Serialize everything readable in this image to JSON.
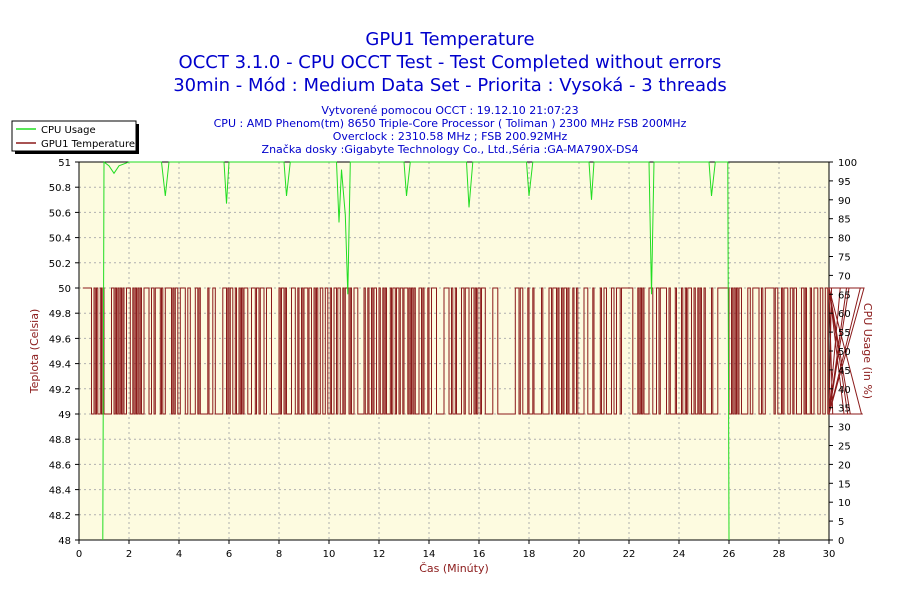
{
  "chart_data": {
    "type": "line",
    "title_lines": [
      "GPU1 Temperature",
      "OCCT 3.1.0 - CPU OCCT Test - Test Completed without errors",
      "30min - Mód : Medium Data Set - Priorita : Vysoká - 3 threads"
    ],
    "info_lines": [
      "Vytvorené pomocou OCCT : 19.12.10 21:07:23",
      "CPU : AMD Phenom(tm) 8650 Triple-Core Processor ( Toliman ) 2300 MHz FSB 200MHz",
      "Overclock : 2310.58 MHz ; FSB 200.92MHz",
      "Značka dosky :Gigabyte Technology Co., Ltd.,Séria :GA-MA790X-DS4"
    ],
    "xlabel": "Čas (Minúty)",
    "ylabel_left": "Teplota (Celsia)",
    "ylabel_right": "CPU Usage (in %)",
    "xlim": [
      0,
      30
    ],
    "ylim_left": [
      48,
      51
    ],
    "ylim_right": [
      0,
      100
    ],
    "x_ticks": [
      0,
      2,
      4,
      6,
      8,
      10,
      12,
      14,
      16,
      18,
      20,
      22,
      24,
      26,
      28,
      30
    ],
    "y_ticks_left": [
      48,
      48.2,
      48.4,
      48.6,
      48.8,
      49,
      49.2,
      49.4,
      49.6,
      49.8,
      50,
      50.2,
      50.4,
      50.6,
      50.8,
      51
    ],
    "y_ticks_right": [
      0,
      5,
      10,
      15,
      20,
      25,
      30,
      35,
      40,
      45,
      50,
      55,
      60,
      65,
      70,
      75,
      80,
      85,
      90,
      95,
      100
    ],
    "legend": [
      {
        "name": "CPU Usage",
        "color": "#22dd22"
      },
      {
        "name": "GPU1 Temperature",
        "color": "#8b1a1a"
      }
    ],
    "series": [
      {
        "name": "CPU Usage",
        "axis": "right",
        "color": "#22dd22",
        "points": [
          [
            0.95,
            0
          ],
          [
            1.0,
            100
          ],
          [
            1.2,
            99
          ],
          [
            1.4,
            97
          ],
          [
            1.6,
            99
          ],
          [
            2.0,
            100
          ],
          [
            3.3,
            100
          ],
          [
            3.45,
            91
          ],
          [
            3.6,
            100
          ],
          [
            5.8,
            100
          ],
          [
            5.9,
            89
          ],
          [
            6.0,
            100
          ],
          [
            8.2,
            100
          ],
          [
            8.3,
            91
          ],
          [
            8.45,
            100
          ],
          [
            10.3,
            100
          ],
          [
            10.4,
            84
          ],
          [
            10.5,
            98
          ],
          [
            10.65,
            86
          ],
          [
            10.75,
            65
          ],
          [
            10.85,
            100
          ],
          [
            13.0,
            100
          ],
          [
            13.1,
            91
          ],
          [
            13.25,
            100
          ],
          [
            15.5,
            100
          ],
          [
            15.6,
            88
          ],
          [
            15.75,
            100
          ],
          [
            17.9,
            100
          ],
          [
            18.0,
            91
          ],
          [
            18.15,
            100
          ],
          [
            20.4,
            100
          ],
          [
            20.5,
            90
          ],
          [
            20.6,
            100
          ],
          [
            22.8,
            100
          ],
          [
            22.9,
            65
          ],
          [
            23.0,
            100
          ],
          [
            25.2,
            100
          ],
          [
            25.3,
            91
          ],
          [
            25.45,
            100
          ],
          [
            25.95,
            100
          ],
          [
            26.0,
            0
          ]
        ]
      },
      {
        "name": "GPU1 Temperature",
        "axis": "left",
        "color": "#8b1a1a",
        "values_start": 0.15,
        "values_step": 0.05,
        "values": [
          50,
          50,
          50,
          50,
          50,
          50,
          50,
          49,
          49,
          50,
          49,
          50,
          49,
          49,
          50,
          49,
          50,
          49,
          49,
          49,
          49,
          49,
          49,
          50,
          50,
          49,
          50,
          49,
          50,
          49,
          50,
          49,
          50,
          49,
          49,
          50,
          50,
          50,
          49,
          49,
          50,
          49,
          50,
          49,
          50,
          49,
          50,
          49,
          49,
          50,
          50,
          50,
          50,
          49,
          49,
          50,
          50,
          49,
          50,
          50,
          50,
          50,
          49,
          50,
          49,
          49,
          50,
          50,
          50,
          50,
          50,
          49,
          50,
          49,
          50,
          50,
          49,
          49,
          50,
          50,
          50,
          50,
          49,
          49,
          50,
          50,
          49,
          49,
          49,
          49,
          50,
          50,
          49,
          50,
          49,
          49,
          49,
          49,
          49,
          49,
          50,
          49,
          49,
          49,
          50,
          50,
          49,
          49,
          49,
          49,
          49,
          49,
          50,
          50,
          50,
          49,
          50,
          49,
          50,
          50,
          49,
          49,
          50,
          49,
          49,
          50,
          49,
          50,
          49,
          50,
          50,
          50,
          49,
          49,
          49,
          50,
          50,
          50,
          49,
          50,
          50,
          49,
          50,
          50,
          50,
          49,
          49,
          50,
          50,
          50,
          50,
          49,
          49,
          49,
          49,
          49,
          49,
          50,
          49,
          50,
          50,
          49,
          50,
          49,
          49,
          49,
          49,
          50,
          50,
          50,
          49,
          49,
          50,
          49,
          49,
          50,
          49,
          50,
          50,
          50,
          49,
          50,
          50,
          49,
          49,
          50,
          49,
          50,
          49,
          49,
          50,
          50,
          49,
          49,
          50,
          50,
          49,
          49,
          50,
          49,
          49,
          50,
          50,
          49,
          50,
          50,
          49,
          49,
          50,
          49,
          50,
          50,
          50,
          49,
          50,
          49,
          49,
          50,
          50,
          50,
          49,
          49,
          49,
          49,
          49,
          50,
          49,
          49,
          50,
          49,
          49,
          50,
          49,
          50,
          50,
          49,
          49,
          50,
          49,
          49,
          50,
          49,
          50,
          49,
          49,
          49,
          50,
          49,
          50,
          50,
          49,
          50,
          50,
          49,
          50,
          50,
          49,
          50,
          50,
          50,
          49,
          50,
          49,
          50,
          49,
          50,
          49,
          49,
          49,
          50,
          50,
          49,
          50,
          49,
          49,
          49,
          50,
          49,
          49,
          50,
          50,
          50,
          50,
          49,
          49,
          49,
          49,
          49,
          49,
          50,
          50,
          50,
          50,
          49,
          49,
          50,
          49,
          49,
          50,
          49,
          49,
          49,
          49,
          50,
          50,
          49,
          50,
          50,
          50,
          49,
          49,
          50,
          50,
          49,
          50,
          49,
          50,
          50,
          49,
          50,
          50,
          50,
          49,
          49,
          49,
          49,
          49,
          49,
          50,
          50,
          50,
          50,
          49,
          49,
          49,
          49,
          49,
          49,
          49,
          49,
          49,
          49,
          49,
          49,
          49,
          49,
          50,
          50,
          50,
          49,
          50,
          50,
          49,
          49,
          49,
          49,
          50,
          49,
          49,
          49,
          50,
          49,
          49,
          49,
          49,
          49,
          49,
          50,
          49,
          49,
          49,
          49,
          49,
          50,
          50,
          49,
          50,
          50,
          50,
          49,
          50,
          49,
          49,
          50,
          49,
          50,
          50,
          49,
          50,
          49,
          49,
          49,
          50,
          49,
          49,
          50,
          49,
          49,
          49,
          49,
          49,
          50,
          50,
          50,
          49,
          49,
          49,
          49,
          50,
          49,
          49,
          49,
          49,
          49,
          50,
          49,
          49,
          50,
          50,
          49,
          49,
          49,
          49,
          50,
          50,
          49,
          49,
          50,
          50,
          50,
          49,
          50,
          50,
          50,
          50,
          50,
          50,
          50,
          50,
          50,
          49,
          49,
          49,
          49,
          50,
          49,
          50,
          49,
          50,
          49,
          49,
          49,
          49,
          50,
          50,
          50,
          49,
          49,
          49,
          50,
          50,
          49,
          50,
          50,
          50,
          50,
          50,
          49,
          49,
          50,
          49,
          49,
          49,
          49,
          50,
          49,
          49,
          49,
          49,
          50,
          49,
          49,
          50,
          49,
          50,
          50,
          50,
          49,
          49,
          50,
          49,
          49,
          50,
          49,
          50,
          49,
          49,
          50,
          49,
          49,
          49,
          49,
          49,
          50,
          49,
          49,
          49,
          49,
          50,
          50,
          50,
          50,
          50,
          50,
          50,
          50,
          50,
          49,
          49,
          50,
          49,
          50,
          49,
          50,
          49,
          50,
          50,
          49,
          49,
          49,
          49,
          49,
          50,
          50,
          49,
          49,
          50,
          50,
          50,
          50,
          50,
          49,
          49,
          50,
          49,
          49,
          50,
          50,
          50,
          50,
          50,
          50,
          50,
          49,
          50,
          50,
          49,
          49,
          49,
          50,
          49,
          50,
          50,
          50,
          49,
          49,
          50,
          50,
          49,
          50,
          50,
          49,
          49,
          49,
          49,
          50,
          50,
          49,
          50,
          49,
          49,
          49,
          50,
          49,
          49,
          50,
          50,
          50,
          49,
          49,
          50,
          50,
          49,
          49,
          50,
          50,
          49,
          49,
          49,
          50,
          49,
          49,
          49,
          49,
          49,
          49,
          50,
          50,
          50,
          49,
          49,
          50,
          49,
          50,
          49,
          49,
          49,
          49,
          49,
          49,
          49,
          49,
          50,
          49,
          49,
          50
        ]
      }
    ]
  }
}
